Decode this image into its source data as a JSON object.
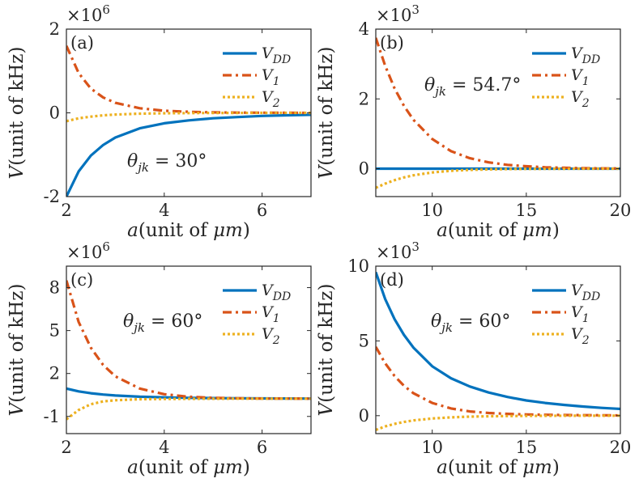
{
  "chart_data": [
    {
      "type": "line",
      "panel_label": "(a)",
      "exponent_base": "×10",
      "exponent_power": "6",
      "xlabel_prefix": "a",
      "xlabel_text": "(unit of ",
      "xlabel_var": "μm",
      "xlabel_suffix": ")",
      "ylabel_prefix": "V",
      "ylabel_text": "(unit of kHz)",
      "annotation": "θjk = 30°",
      "annotation_theta": "θ",
      "annotation_sub": "jk",
      "annotation_value": " = 30°",
      "xlim": [
        2,
        7
      ],
      "ylim": [
        -2,
        2
      ],
      "xticks": [
        2,
        4,
        6
      ],
      "yticks": [
        -2,
        0,
        2
      ],
      "xtick_labels": [
        "2",
        "4",
        "6"
      ],
      "ytick_labels": [
        "-2",
        "0",
        "2"
      ],
      "x": [
        2,
        2.25,
        2.5,
        2.75,
        3,
        3.5,
        4,
        4.5,
        5,
        5.5,
        6,
        6.5,
        7
      ],
      "series": [
        {
          "name": "VDD",
          "legend_main": "V",
          "legend_sub": "DD",
          "color": "#0072BD",
          "style": "solid",
          "values": [
            -2.0,
            -1.4,
            -1.02,
            -0.77,
            -0.59,
            -0.37,
            -0.25,
            -0.18,
            -0.13,
            -0.1,
            -0.074,
            -0.058,
            -0.047
          ]
        },
        {
          "name": "V1",
          "legend_main": "V",
          "legend_sub": "1",
          "color": "#D95319",
          "style": "dashdot",
          "values": [
            1.6,
            0.95,
            0.58,
            0.37,
            0.24,
            0.11,
            0.05,
            0.025,
            0.012,
            0.006,
            0.003,
            0.001,
            0.0
          ]
        },
        {
          "name": "V2",
          "legend_main": "V",
          "legend_sub": "2",
          "color": "#EDB120",
          "style": "dotted",
          "values": [
            -0.2,
            -0.13,
            -0.09,
            -0.06,
            -0.04,
            -0.02,
            -0.01,
            -0.005,
            -0.002,
            -0.001,
            0.0,
            0.0,
            0.0
          ]
        }
      ]
    },
    {
      "type": "line",
      "panel_label": "(b)",
      "exponent_base": "×10",
      "exponent_power": "3",
      "xlabel_prefix": "a",
      "xlabel_text": "(unit of ",
      "xlabel_var": "μm",
      "xlabel_suffix": ")",
      "ylabel_prefix": "V",
      "ylabel_text": "(unit of kHz)",
      "annotation": "θjk = 54.7°",
      "annotation_theta": "θ",
      "annotation_sub": "jk",
      "annotation_value": " = 54.7°",
      "xlim": [
        7,
        20
      ],
      "ylim": [
        -0.8,
        4
      ],
      "xticks": [
        10,
        15,
        20
      ],
      "yticks": [
        0,
        2,
        4
      ],
      "xtick_labels": [
        "10",
        "15",
        "20"
      ],
      "ytick_labels": [
        "0",
        "2",
        "4"
      ],
      "x": [
        7,
        7.5,
        8,
        8.5,
        9,
        10,
        11,
        12,
        13,
        14,
        15,
        16,
        17,
        18,
        19,
        20
      ],
      "series": [
        {
          "name": "VDD",
          "legend_main": "V",
          "legend_sub": "DD",
          "color": "#0072BD",
          "style": "solid",
          "values": [
            0,
            0,
            0,
            0,
            0,
            0,
            0,
            0,
            0,
            0,
            0,
            0,
            0,
            0,
            0,
            0
          ]
        },
        {
          "name": "V1",
          "legend_main": "V",
          "legend_sub": "1",
          "color": "#D95319",
          "style": "dashdot",
          "values": [
            3.75,
            2.95,
            2.3,
            1.8,
            1.4,
            0.85,
            0.5,
            0.3,
            0.18,
            0.11,
            0.07,
            0.04,
            0.025,
            0.015,
            0.01,
            0.005
          ]
        },
        {
          "name": "V2",
          "legend_main": "V",
          "legend_sub": "2",
          "color": "#EDB120",
          "style": "dotted",
          "values": [
            -0.55,
            -0.43,
            -0.33,
            -0.25,
            -0.19,
            -0.11,
            -0.06,
            -0.035,
            -0.02,
            -0.012,
            -0.007,
            -0.004,
            -0.002,
            -0.001,
            0.0,
            0.0
          ]
        }
      ]
    },
    {
      "type": "line",
      "panel_label": "(c)",
      "exponent_base": "×10",
      "exponent_power": "6",
      "xlabel_prefix": "a",
      "xlabel_text": "(unit of ",
      "xlabel_var": "μm",
      "xlabel_suffix": ")",
      "ylabel_prefix": "V",
      "ylabel_text": "(unit of kHz)",
      "annotation": "θjk = 60°",
      "annotation_theta": "θ",
      "annotation_sub": "jk",
      "annotation_value": " = 60°",
      "xlim": [
        2,
        7
      ],
      "ylim": [
        -2.2,
        9.5
      ],
      "xticks": [
        2,
        4,
        6
      ],
      "yticks": [
        -1,
        2,
        5,
        8
      ],
      "xtick_labels": [
        "2",
        "4",
        "6"
      ],
      "ytick_labels": [
        "-1",
        "2",
        "5",
        "8"
      ],
      "x": [
        2,
        2.25,
        2.5,
        2.75,
        3,
        3.5,
        4,
        4.5,
        5,
        5.5,
        6,
        6.5,
        7
      ],
      "series": [
        {
          "name": "VDD",
          "legend_main": "V",
          "legend_sub": "DD",
          "color": "#0072BD",
          "style": "solid",
          "values": [
            0.95,
            0.75,
            0.62,
            0.53,
            0.46,
            0.38,
            0.33,
            0.3,
            0.28,
            0.27,
            0.26,
            0.255,
            0.25
          ]
        },
        {
          "name": "V1",
          "legend_main": "V",
          "legend_sub": "1",
          "color": "#D95319",
          "style": "dashdot",
          "values": [
            8.5,
            5.6,
            3.8,
            2.6,
            1.8,
            0.95,
            0.55,
            0.38,
            0.3,
            0.27,
            0.25,
            0.245,
            0.24
          ]
        },
        {
          "name": "V2",
          "legend_main": "V",
          "legend_sub": "2",
          "color": "#EDB120",
          "style": "dotted",
          "values": [
            -1.2,
            -0.55,
            -0.15,
            0.05,
            0.13,
            0.2,
            0.22,
            0.23,
            0.235,
            0.24,
            0.24,
            0.24,
            0.24
          ]
        }
      ]
    },
    {
      "type": "line",
      "panel_label": "(d)",
      "exponent_base": "×10",
      "exponent_power": "3",
      "xlabel_prefix": "a",
      "xlabel_text": "(unit of ",
      "xlabel_var": "μm",
      "xlabel_suffix": ")",
      "ylabel_prefix": "V",
      "ylabel_text": "(unit of kHz)",
      "annotation": "θjk = 60°",
      "annotation_theta": "θ",
      "annotation_sub": "jk",
      "annotation_value": " = 60°",
      "xlim": [
        7,
        20
      ],
      "ylim": [
        -1.2,
        10
      ],
      "xticks": [
        10,
        15,
        20
      ],
      "yticks": [
        0,
        5,
        10
      ],
      "xtick_labels": [
        "10",
        "15",
        "20"
      ],
      "ytick_labels": [
        "0",
        "5",
        "10"
      ],
      "x": [
        7,
        7.5,
        8,
        8.5,
        9,
        10,
        11,
        12,
        13,
        14,
        15,
        16,
        17,
        18,
        19,
        20
      ],
      "series": [
        {
          "name": "VDD",
          "legend_main": "V",
          "legend_sub": "DD",
          "color": "#0072BD",
          "style": "solid",
          "values": [
            9.6,
            7.8,
            6.45,
            5.4,
            4.55,
            3.3,
            2.5,
            1.95,
            1.55,
            1.25,
            1.02,
            0.85,
            0.72,
            0.61,
            0.52,
            0.45
          ]
        },
        {
          "name": "V1",
          "legend_main": "V",
          "legend_sub": "1",
          "color": "#D95319",
          "style": "dashdot",
          "values": [
            4.6,
            3.5,
            2.65,
            2.0,
            1.5,
            0.85,
            0.48,
            0.28,
            0.18,
            0.12,
            0.08,
            0.06,
            0.045,
            0.035,
            0.028,
            0.02
          ]
        },
        {
          "name": "V2",
          "legend_main": "V",
          "legend_sub": "2",
          "color": "#EDB120",
          "style": "dotted",
          "values": [
            -0.95,
            -0.72,
            -0.55,
            -0.42,
            -0.32,
            -0.19,
            -0.11,
            -0.065,
            -0.04,
            -0.025,
            -0.015,
            -0.01,
            -0.006,
            -0.004,
            -0.002,
            0.0
          ]
        }
      ]
    }
  ]
}
